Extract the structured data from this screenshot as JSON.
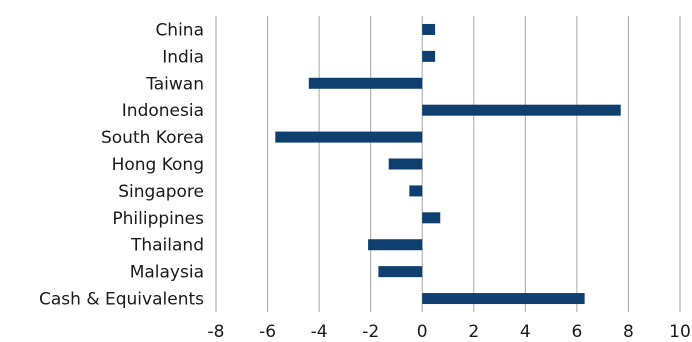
{
  "chart_data": {
    "type": "bar",
    "orientation": "horizontal",
    "title": "",
    "xlabel": "",
    "ylabel": "",
    "categories": [
      "China",
      "India",
      "Taiwan",
      "Indonesia",
      "South Korea",
      "Hong Kong",
      "Singapore",
      "Philippines",
      "Thailand",
      "Malaysia",
      "Cash & Equivalents"
    ],
    "values": [
      0.5,
      0.5,
      -4.4,
      7.7,
      -5.7,
      -1.3,
      -0.5,
      0.7,
      -2.1,
      -1.7,
      6.3
    ],
    "xlim": [
      -8,
      10
    ],
    "xticks": [
      "-8",
      "-6",
      "-4",
      "-2",
      "0",
      "2",
      "4",
      "6",
      "8",
      "10"
    ],
    "grid": "vertical",
    "bar_color": "#0e3f6e",
    "grid_color": "#a6a6a6"
  }
}
